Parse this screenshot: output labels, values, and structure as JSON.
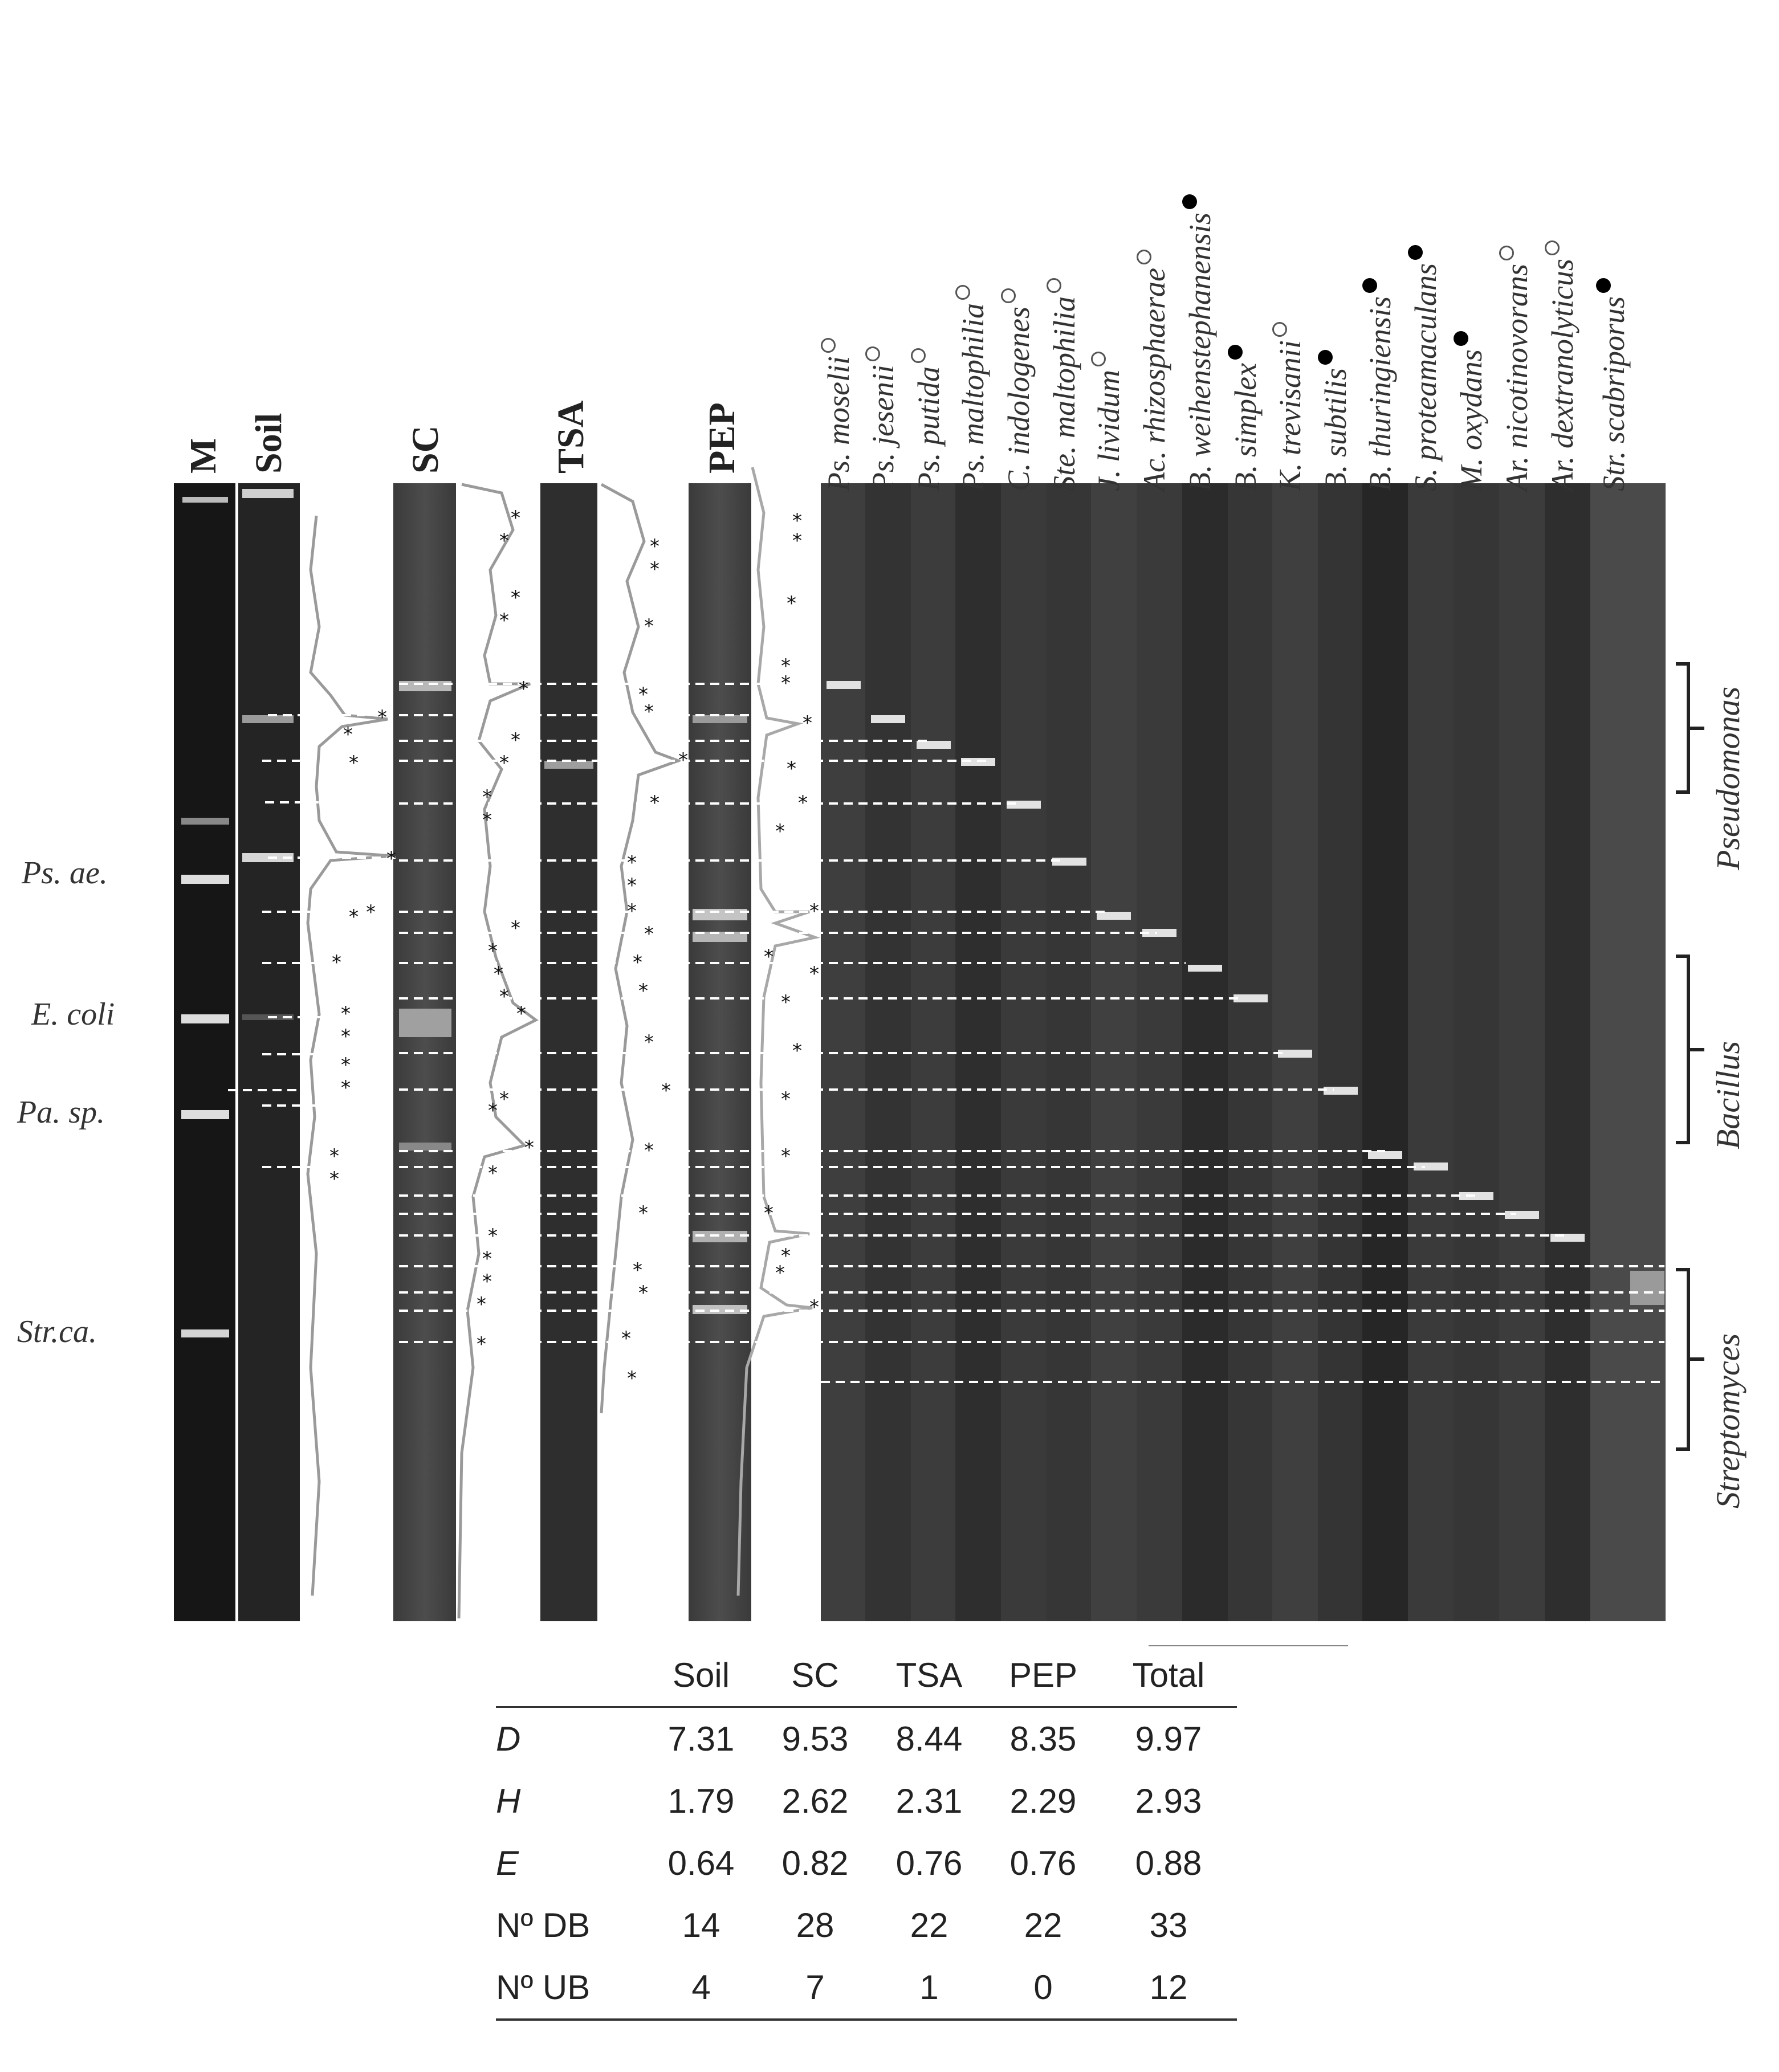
{
  "lane_labels": {
    "M": "M",
    "soil": "Soil",
    "sc": "SC",
    "tsa": "TSA",
    "pep": "PEP"
  },
  "marker_labels": [
    {
      "name": "marker-label-ps-ae",
      "text": "Ps. ae."
    },
    {
      "name": "marker-label-e-coli",
      "text": "E. coli"
    },
    {
      "name": "marker-label-pa-sp",
      "text": "Pa. sp."
    },
    {
      "name": "marker-label-str-ca",
      "text": "Str.ca."
    }
  ],
  "species": [
    {
      "name": "Ps. moselii",
      "marker": "open"
    },
    {
      "name": "Ps. jesenii",
      "marker": "open"
    },
    {
      "name": "Ps. putida",
      "marker": "open"
    },
    {
      "name": "Ps. maltophilia",
      "marker": "open"
    },
    {
      "name": "C. indologenes",
      "marker": "open"
    },
    {
      "name": "Ste. maltophilia",
      "marker": "open"
    },
    {
      "name": "J. lividum",
      "marker": "open"
    },
    {
      "name": "Ac. rhizosphaerae",
      "marker": "open"
    },
    {
      "name": "B. weihenstephanensis",
      "marker": "filled"
    },
    {
      "name": "B. simplex",
      "marker": "filled"
    },
    {
      "name": "K. trevisanii",
      "marker": "open"
    },
    {
      "name": "B. subtilis",
      "marker": "filled"
    },
    {
      "name": "B. thuringiensis",
      "marker": "filled"
    },
    {
      "name": "S. proteamaculans",
      "marker": "filled"
    },
    {
      "name": "M. oxydans",
      "marker": "filled"
    },
    {
      "name": "Ar. nicotinovorans",
      "marker": "open"
    },
    {
      "name": "Ar. dextranolyticus",
      "marker": "open"
    },
    {
      "name": "Str. scabriporus",
      "marker": "filled"
    }
  ],
  "genus_groups": [
    {
      "name": "Pseudomonas"
    },
    {
      "name": "Bacillus"
    },
    {
      "name": "Streptomyces"
    }
  ],
  "table": {
    "columns": [
      "",
      "Soil",
      "SC",
      "TSA",
      "PEP",
      "Total"
    ],
    "rows": [
      {
        "label": "D",
        "italic": true,
        "values": [
          "7.31",
          "9.53",
          "8.44",
          "8.35",
          "9.97"
        ]
      },
      {
        "label": "H",
        "italic": true,
        "values": [
          "1.79",
          "2.62",
          "2.31",
          "2.29",
          "2.93"
        ]
      },
      {
        "label": "E",
        "italic": true,
        "values": [
          "0.64",
          "0.82",
          "0.76",
          "0.76",
          "0.88"
        ]
      },
      {
        "label": "Nº DB",
        "italic": false,
        "values": [
          "14",
          "28",
          "22",
          "22",
          "33"
        ]
      },
      {
        "label": "Nº UB",
        "italic": false,
        "values": [
          "4",
          "7",
          "1",
          "0",
          "12"
        ]
      }
    ]
  }
}
